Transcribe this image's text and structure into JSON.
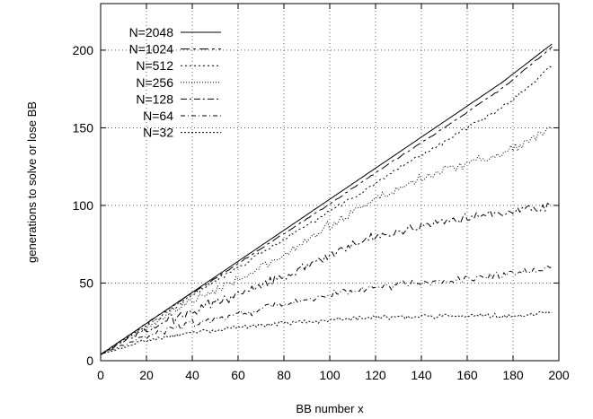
{
  "chart_data": {
    "type": "line",
    "title": "",
    "xlabel": "BB number x",
    "ylabel": "generations to solve or lose BB",
    "xlim": [
      0,
      200
    ],
    "ylim": [
      0,
      230
    ],
    "xticks": [
      0,
      20,
      40,
      60,
      80,
      100,
      120,
      140,
      160,
      180,
      200
    ],
    "yticks": [
      0,
      50,
      100,
      150,
      200
    ],
    "grid": true,
    "legend_position": "top-left",
    "series": [
      {
        "name": "N=2048",
        "dash": "",
        "noise": 0.0,
        "points": [
          [
            0,
            4
          ],
          [
            25,
            29
          ],
          [
            50,
            54
          ],
          [
            75,
            79
          ],
          [
            100,
            104
          ],
          [
            125,
            129
          ],
          [
            150,
            154
          ],
          [
            175,
            179
          ],
          [
            197,
            204
          ]
        ]
      },
      {
        "name": "N=1024",
        "dash": "10 4 3 4",
        "noise": 0.3,
        "points": [
          [
            0,
            4
          ],
          [
            25,
            29
          ],
          [
            50,
            53
          ],
          [
            75,
            77
          ],
          [
            100,
            101
          ],
          [
            125,
            126
          ],
          [
            150,
            150
          ],
          [
            175,
            175
          ],
          [
            197,
            202
          ]
        ]
      },
      {
        "name": "N=512",
        "dash": "2 3",
        "noise": 1.2,
        "points": [
          [
            0,
            4
          ],
          [
            20,
            23
          ],
          [
            40,
            42
          ],
          [
            60,
            60
          ],
          [
            80,
            78
          ],
          [
            100,
            96
          ],
          [
            120,
            114
          ],
          [
            140,
            132
          ],
          [
            160,
            150
          ],
          [
            180,
            168
          ],
          [
            197,
            190
          ]
        ]
      },
      {
        "name": "N=256",
        "dash": "1 2",
        "noise": 2.5,
        "points": [
          [
            0,
            4
          ],
          [
            20,
            22
          ],
          [
            40,
            39
          ],
          [
            60,
            53
          ],
          [
            80,
            67
          ],
          [
            100,
            87
          ],
          [
            120,
            104
          ],
          [
            140,
            118
          ],
          [
            160,
            127
          ],
          [
            180,
            136
          ],
          [
            197,
            150
          ]
        ]
      },
      {
        "name": "N=128",
        "dash": "7 3 2 3",
        "noise": 2.5,
        "points": [
          [
            0,
            4
          ],
          [
            20,
            20
          ],
          [
            40,
            32
          ],
          [
            60,
            43
          ],
          [
            80,
            55
          ],
          [
            100,
            68
          ],
          [
            120,
            80
          ],
          [
            140,
            87
          ],
          [
            160,
            93
          ],
          [
            180,
            97
          ],
          [
            197,
            100
          ]
        ]
      },
      {
        "name": "N=64",
        "dash": "5 3 1 3",
        "noise": 2.0,
        "points": [
          [
            0,
            4
          ],
          [
            20,
            16
          ],
          [
            40,
            24
          ],
          [
            60,
            30
          ],
          [
            80,
            36
          ],
          [
            100,
            43
          ],
          [
            120,
            47
          ],
          [
            140,
            50
          ],
          [
            160,
            53
          ],
          [
            180,
            56
          ],
          [
            197,
            60
          ]
        ]
      },
      {
        "name": "N=32",
        "dash": "2 2",
        "noise": 1.2,
        "points": [
          [
            0,
            4
          ],
          [
            20,
            13
          ],
          [
            40,
            18
          ],
          [
            60,
            22
          ],
          [
            80,
            24
          ],
          [
            100,
            26
          ],
          [
            120,
            28
          ],
          [
            140,
            28
          ],
          [
            160,
            29
          ],
          [
            180,
            29
          ],
          [
            197,
            31
          ]
        ]
      }
    ]
  }
}
